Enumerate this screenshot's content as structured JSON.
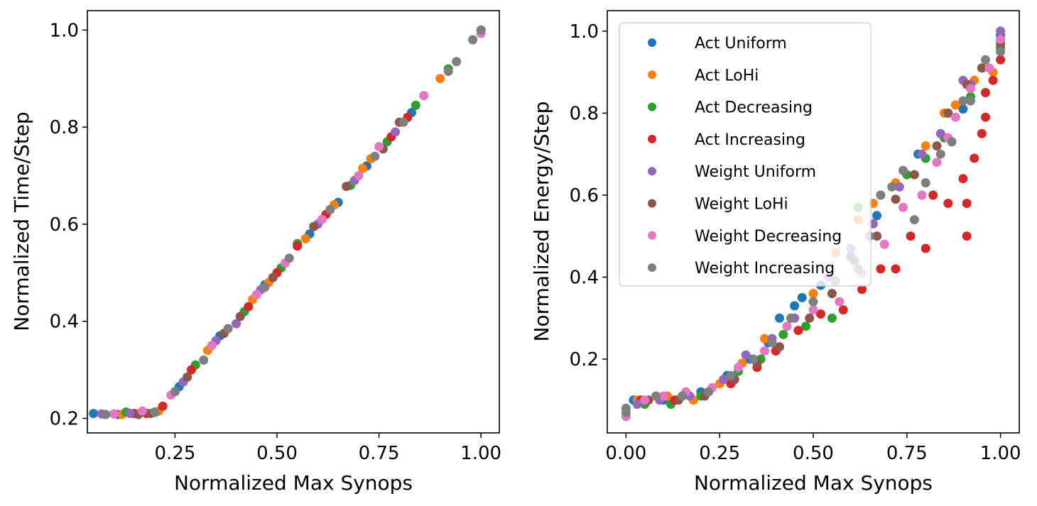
{
  "figure": {
    "background": "#ffffff"
  },
  "series_styles": [
    {
      "name": "Act Uniform",
      "color": "#1f77b4"
    },
    {
      "name": "Act LoHi",
      "color": "#ff7f0e"
    },
    {
      "name": "Act Decreasing",
      "color": "#2ca02c"
    },
    {
      "name": "Act Increasing",
      "color": "#d62728"
    },
    {
      "name": "Weight Uniform",
      "color": "#9467bd"
    },
    {
      "name": "Weight LoHi",
      "color": "#8c564b"
    },
    {
      "name": "Weight Decreasing",
      "color": "#e377c2"
    },
    {
      "name": "Weight Increasing",
      "color": "#7f7f7f"
    }
  ],
  "chart_data": [
    {
      "type": "scatter",
      "title": "",
      "xlabel": "Normalized Max Synops",
      "ylabel": "Normalized Time/Step",
      "xlim": [
        0.035,
        1.045
      ],
      "ylim": [
        0.17,
        1.04
      ],
      "xticks": [
        0.25,
        0.5,
        0.75,
        1.0
      ],
      "xtick_labels": [
        "0.25",
        "0.50",
        "0.75",
        "1.00"
      ],
      "yticks": [
        0.2,
        0.4,
        0.6,
        0.8,
        1.0
      ],
      "ytick_labels": [
        "0.2",
        "0.4",
        "0.6",
        "0.8",
        "1.0"
      ],
      "legend": null,
      "series": [
        {
          "name": "Act Uniform",
          "points": [
            [
              0.05,
              0.21
            ],
            [
              0.11,
              0.208
            ],
            [
              0.26,
              0.265
            ],
            [
              0.36,
              0.37
            ],
            [
              0.47,
              0.475
            ],
            [
              0.58,
              0.58
            ],
            [
              0.65,
              0.645
            ],
            [
              0.72,
              0.72
            ],
            [
              0.83,
              0.83
            ],
            [
              1.0,
              1.0
            ]
          ]
        },
        {
          "name": "Act LoHi",
          "points": [
            [
              0.12,
              0.208
            ],
            [
              0.21,
              0.215
            ],
            [
              0.33,
              0.34
            ],
            [
              0.44,
              0.445
            ],
            [
              0.48,
              0.48
            ],
            [
              0.57,
              0.57
            ],
            [
              0.64,
              0.64
            ],
            [
              0.71,
              0.715
            ],
            [
              0.73,
              0.735
            ],
            [
              0.9,
              0.9
            ]
          ]
        },
        {
          "name": "Act Decreasing",
          "points": [
            [
              0.13,
              0.213
            ],
            [
              0.2,
              0.212
            ],
            [
              0.3,
              0.31
            ],
            [
              0.42,
              0.42
            ],
            [
              0.51,
              0.51
            ],
            [
              0.55,
              0.56
            ],
            [
              0.68,
              0.68
            ],
            [
              0.77,
              0.77
            ],
            [
              0.84,
              0.845
            ],
            [
              0.92,
              0.92
            ]
          ]
        },
        {
          "name": "Act Increasing",
          "points": [
            [
              0.15,
              0.21
            ],
            [
              0.18,
              0.21
            ],
            [
              0.22,
              0.225
            ],
            [
              0.29,
              0.3
            ],
            [
              0.43,
              0.43
            ],
            [
              0.5,
              0.5
            ],
            [
              0.55,
              0.555
            ],
            [
              0.62,
              0.62
            ],
            [
              0.78,
              0.78
            ],
            [
              0.82,
              0.82
            ]
          ]
        },
        {
          "name": "Weight Uniform",
          "points": [
            [
              0.07,
              0.209
            ],
            [
              0.14,
              0.21
            ],
            [
              0.27,
              0.275
            ],
            [
              0.35,
              0.36
            ],
            [
              0.4,
              0.395
            ],
            [
              0.46,
              0.465
            ],
            [
              0.6,
              0.6
            ],
            [
              0.69,
              0.69
            ],
            [
              0.79,
              0.79
            ]
          ]
        },
        {
          "name": "Weight LoHi",
          "points": [
            [
              0.16,
              0.208
            ],
            [
              0.19,
              0.21
            ],
            [
              0.28,
              0.285
            ],
            [
              0.37,
              0.375
            ],
            [
              0.41,
              0.41
            ],
            [
              0.49,
              0.49
            ],
            [
              0.59,
              0.595
            ],
            [
              0.67,
              0.678
            ],
            [
              0.76,
              0.755
            ],
            [
              0.8,
              0.81
            ]
          ]
        },
        {
          "name": "Weight Decreasing",
          "points": [
            [
              0.1,
              0.209
            ],
            [
              0.17,
              0.215
            ],
            [
              0.24,
              0.248
            ],
            [
              0.34,
              0.35
            ],
            [
              0.45,
              0.455
            ],
            [
              0.52,
              0.52
            ],
            [
              0.61,
              0.61
            ],
            [
              0.7,
              0.7
            ],
            [
              0.75,
              0.76
            ],
            [
              0.86,
              0.865
            ],
            [
              1.0,
              0.993
            ]
          ]
        },
        {
          "name": "Weight Increasing",
          "points": [
            [
              0.08,
              0.208
            ],
            [
              0.2,
              0.213
            ],
            [
              0.25,
              0.255
            ],
            [
              0.32,
              0.32
            ],
            [
              0.38,
              0.385
            ],
            [
              0.47,
              0.47
            ],
            [
              0.53,
              0.53
            ],
            [
              0.63,
              0.63
            ],
            [
              0.74,
              0.74
            ],
            [
              0.81,
              0.81
            ],
            [
              0.92,
              0.915
            ],
            [
              0.94,
              0.935
            ],
            [
              0.98,
              0.98
            ],
            [
              1.0,
              1.0
            ]
          ]
        }
      ]
    },
    {
      "type": "scatter",
      "title": "",
      "xlabel": "Normalized Max Synops",
      "ylabel": "Normalized Energy/Step",
      "xlim": [
        -0.05,
        1.05
      ],
      "ylim": [
        0.02,
        1.05
      ],
      "xticks": [
        0.0,
        0.25,
        0.5,
        0.75,
        1.0
      ],
      "xtick_labels": [
        "0.00",
        "0.25",
        "0.50",
        "0.75",
        "1.00"
      ],
      "yticks": [
        0.2,
        0.4,
        0.6,
        0.8,
        1.0
      ],
      "ytick_labels": [
        "0.2",
        "0.4",
        "0.6",
        "0.8",
        "1.0"
      ],
      "legend": {
        "placement": "upper-left"
      },
      "series": [
        {
          "name": "Act Uniform",
          "points": [
            [
              0.02,
              0.1
            ],
            [
              0.1,
              0.1
            ],
            [
              0.2,
              0.12
            ],
            [
              0.27,
              0.16
            ],
            [
              0.33,
              0.2
            ],
            [
              0.38,
              0.24
            ],
            [
              0.41,
              0.3
            ],
            [
              0.45,
              0.33
            ],
            [
              0.47,
              0.35
            ],
            [
              0.52,
              0.38
            ],
            [
              0.6,
              0.45
            ],
            [
              0.67,
              0.55
            ],
            [
              0.78,
              0.7
            ],
            [
              0.9,
              0.81
            ],
            [
              1.0,
              0.99
            ]
          ]
        },
        {
          "name": "Act LoHi",
          "points": [
            [
              0.03,
              0.1
            ],
            [
              0.11,
              0.11
            ],
            [
              0.18,
              0.1
            ],
            [
              0.25,
              0.14
            ],
            [
              0.31,
              0.19
            ],
            [
              0.37,
              0.25
            ],
            [
              0.44,
              0.3
            ],
            [
              0.5,
              0.36
            ],
            [
              0.56,
              0.46
            ],
            [
              0.62,
              0.54
            ],
            [
              0.66,
              0.58
            ],
            [
              0.72,
              0.63
            ],
            [
              0.8,
              0.72
            ],
            [
              0.85,
              0.8
            ],
            [
              0.88,
              0.82
            ],
            [
              0.93,
              0.88
            ],
            [
              0.98,
              0.9
            ]
          ]
        },
        {
          "name": "Act Decreasing",
          "points": [
            [
              0.05,
              0.09
            ],
            [
              0.12,
              0.09
            ],
            [
              0.2,
              0.11
            ],
            [
              0.3,
              0.17
            ],
            [
              0.36,
              0.2
            ],
            [
              0.42,
              0.26
            ],
            [
              0.48,
              0.28
            ],
            [
              0.55,
              0.3
            ],
            [
              0.62,
              0.57
            ],
            [
              0.68,
              0.6
            ],
            [
              0.75,
              0.65
            ],
            [
              0.8,
              0.69
            ],
            [
              0.85,
              0.74
            ],
            [
              0.92,
              0.84
            ],
            [
              1.0,
              0.96
            ]
          ]
        },
        {
          "name": "Act Increasing",
          "points": [
            [
              0.04,
              0.1
            ],
            [
              0.13,
              0.1
            ],
            [
              0.22,
              0.12
            ],
            [
              0.28,
              0.14
            ],
            [
              0.35,
              0.18
            ],
            [
              0.4,
              0.22
            ],
            [
              0.46,
              0.27
            ],
            [
              0.52,
              0.31
            ],
            [
              0.58,
              0.32
            ],
            [
              0.63,
              0.37
            ],
            [
              0.68,
              0.42
            ],
            [
              0.72,
              0.42
            ],
            [
              0.76,
              0.5
            ],
            [
              0.8,
              0.47
            ],
            [
              0.82,
              0.6
            ],
            [
              0.86,
              0.58
            ],
            [
              0.9,
              0.64
            ],
            [
              0.91,
              0.58
            ],
            [
              0.91,
              0.5
            ],
            [
              0.93,
              0.69
            ],
            [
              0.95,
              0.75
            ],
            [
              0.96,
              0.79
            ],
            [
              0.96,
              0.85
            ],
            [
              0.98,
              0.88
            ],
            [
              1.0,
              0.93
            ]
          ]
        },
        {
          "name": "Weight Uniform",
          "points": [
            [
              0.03,
              0.09
            ],
            [
              0.09,
              0.1
            ],
            [
              0.17,
              0.11
            ],
            [
              0.26,
              0.15
            ],
            [
              0.32,
              0.21
            ],
            [
              0.39,
              0.25
            ],
            [
              0.45,
              0.3
            ],
            [
              0.54,
              0.4
            ],
            [
              0.6,
              0.47
            ],
            [
              0.66,
              0.53
            ],
            [
              0.73,
              0.62
            ],
            [
              0.79,
              0.7
            ],
            [
              0.84,
              0.75
            ],
            [
              0.9,
              0.88
            ],
            [
              0.92,
              0.87
            ],
            [
              1.0,
              1.0
            ]
          ]
        },
        {
          "name": "Weight LoHi",
          "points": [
            [
              0.06,
              0.1
            ],
            [
              0.14,
              0.1
            ],
            [
              0.21,
              0.11
            ],
            [
              0.29,
              0.15
            ],
            [
              0.35,
              0.19
            ],
            [
              0.41,
              0.23
            ],
            [
              0.49,
              0.3
            ],
            [
              0.55,
              0.36
            ],
            [
              0.61,
              0.44
            ],
            [
              0.67,
              0.5
            ],
            [
              0.72,
              0.59
            ],
            [
              0.77,
              0.65
            ],
            [
              0.83,
              0.72
            ],
            [
              0.86,
              0.8
            ],
            [
              0.91,
              0.87
            ],
            [
              0.95,
              0.91
            ],
            [
              1.0,
              0.97
            ]
          ]
        },
        {
          "name": "Weight Decreasing",
          "points": [
            [
              0.0,
              0.06
            ],
            [
              0.05,
              0.1
            ],
            [
              0.1,
              0.11
            ],
            [
              0.16,
              0.12
            ],
            [
              0.23,
              0.13
            ],
            [
              0.3,
              0.18
            ],
            [
              0.37,
              0.22
            ],
            [
              0.43,
              0.28
            ],
            [
              0.5,
              0.32
            ],
            [
              0.57,
              0.34
            ],
            [
              0.63,
              0.41
            ],
            [
              0.69,
              0.48
            ],
            [
              0.74,
              0.57
            ],
            [
              0.79,
              0.6
            ],
            [
              0.83,
              0.68
            ],
            [
              0.86,
              0.74
            ],
            [
              0.88,
              0.79
            ],
            [
              0.92,
              0.86
            ],
            [
              0.97,
              0.91
            ],
            [
              1.0,
              0.98
            ]
          ]
        },
        {
          "name": "Weight Increasing",
          "points": [
            [
              0.0,
              0.08
            ],
            [
              0.0,
              0.07
            ],
            [
              0.08,
              0.11
            ],
            [
              0.15,
              0.11
            ],
            [
              0.22,
              0.12
            ],
            [
              0.28,
              0.16
            ],
            [
              0.34,
              0.2
            ],
            [
              0.39,
              0.24
            ],
            [
              0.44,
              0.3
            ],
            [
              0.5,
              0.34
            ],
            [
              0.56,
              0.39
            ],
            [
              0.62,
              0.42
            ],
            [
              0.65,
              0.5
            ],
            [
              0.68,
              0.6
            ],
            [
              0.71,
              0.62
            ],
            [
              0.74,
              0.66
            ],
            [
              0.77,
              0.54
            ],
            [
              0.8,
              0.63
            ],
            [
              0.84,
              0.7
            ],
            [
              0.87,
              0.73
            ],
            [
              0.9,
              0.83
            ],
            [
              0.92,
              0.83
            ],
            [
              0.96,
              0.93
            ],
            [
              1.0,
              0.95
            ]
          ]
        }
      ]
    }
  ]
}
